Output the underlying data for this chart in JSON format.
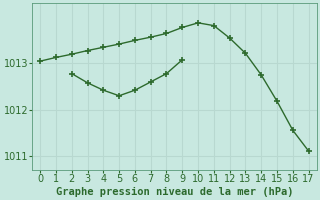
{
  "xlabel": "Graphe pression niveau de la mer (hPa)",
  "background_color": "#c8e8e0",
  "plot_bg_color": "#c8e8e0",
  "line_color": "#2d6a2d",
  "marker": "+",
  "grid_color": "#aacfc8",
  "series1_x": [
    0,
    1,
    2,
    3,
    4,
    5,
    6,
    7,
    8,
    9,
    10,
    11,
    12,
    13,
    14,
    15,
    16,
    17
  ],
  "series1_y": [
    1013.05,
    1013.13,
    1013.2,
    1013.28,
    1013.35,
    1013.42,
    1013.5,
    1013.57,
    1013.65,
    1013.78,
    1013.88,
    1013.82,
    1013.55,
    1013.22,
    1012.75,
    1012.18,
    1011.55,
    1011.1
  ],
  "series2_x": [
    2,
    3,
    4,
    5,
    6,
    7,
    8,
    9
  ],
  "series2_y": [
    1012.78,
    1012.58,
    1012.42,
    1012.3,
    1012.42,
    1012.6,
    1012.78,
    1013.08
  ],
  "xlim": [
    -0.5,
    17.5
  ],
  "ylim": [
    1010.7,
    1014.3
  ],
  "yticks": [
    1011,
    1012,
    1013
  ],
  "xticks": [
    0,
    1,
    2,
    3,
    4,
    5,
    6,
    7,
    8,
    9,
    10,
    11,
    12,
    13,
    14,
    15,
    16,
    17
  ],
  "xlabel_fontsize": 7.5,
  "tick_fontsize": 7
}
